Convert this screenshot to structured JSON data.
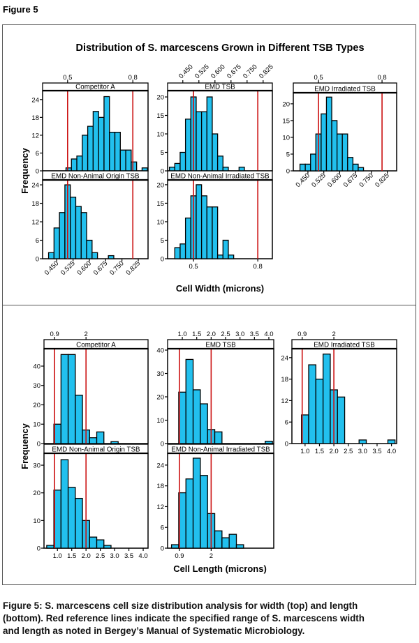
{
  "figure_label": "Figure 5",
  "caption_lines": [
    "Figure 5: S. marcescens cell size distribution analysis for width (top) and length",
    "(bottom). Red reference lines indicate the specified range of S. marcescens width",
    "and length as noted in Bergey’s Manual of Systematic Microbiology."
  ],
  "colors": {
    "bar": "#22c0ee",
    "reference_line": "#cc1111",
    "axis": "#000000"
  },
  "chart_data": [
    {
      "type": "bar",
      "title": "Distribution of S. marcescens Grown in Different TSB Types",
      "xlabel": "Cell Width (microns)",
      "ylabel": "Frequency",
      "reference_lines": [
        0.5,
        0.8
      ],
      "bin_width": 0.025,
      "panels": [
        {
          "title": "Competitor A",
          "xlim": [
            0.385,
            0.87
          ],
          "ylim": [
            0,
            27
          ],
          "yticks": [
            0,
            6,
            12,
            18,
            24
          ],
          "bin_start": 0.4925,
          "counts": [
            1,
            4,
            5,
            12,
            15,
            20,
            18,
            25,
            13,
            13,
            7,
            7,
            3,
            0,
            1
          ],
          "top_ticks": [
            "0.5",
            "0.8"
          ],
          "top_rotated": false,
          "bottom_ticks": [],
          "bottom_rotated": false
        },
        {
          "title": "EMD TSB",
          "xlim": [
            0.379,
            0.868
          ],
          "ylim": [
            0,
            21.7
          ],
          "yticks": [
            0,
            5,
            10,
            15,
            20
          ],
          "bin_start": 0.3875,
          "counts": [
            1,
            2,
            5,
            14,
            20,
            16,
            16,
            20,
            10,
            4,
            1,
            0,
            0,
            1
          ],
          "top_ticks": [
            "0.450",
            "0.525",
            "0.600",
            "0.675",
            "0.750",
            "0.825"
          ],
          "top_rotated": true,
          "bottom_ticks": [],
          "bottom_rotated": false
        },
        {
          "title": "EMD Irradiated TSB",
          "xlim": [
            0.381,
            0.869
          ],
          "ylim": [
            0,
            23.3
          ],
          "yticks": [
            0,
            5,
            10,
            15,
            20
          ],
          "bin_start": 0.4125,
          "counts": [
            2,
            2,
            5,
            11,
            17,
            22,
            15,
            11,
            11,
            4,
            2,
            1
          ],
          "top_ticks": [
            "0.5",
            "0.8"
          ],
          "top_rotated": false,
          "bottom_ticks": [
            "0.450",
            "0.525",
            "0.600",
            "0.675",
            "0.750",
            "0.825"
          ],
          "bottom_rotated": true
        },
        {
          "title": "EMD Non-Animal Origin TSB",
          "xlim": [
            0.385,
            0.87
          ],
          "ylim": [
            0,
            25.6
          ],
          "yticks": [
            0,
            6,
            12,
            18,
            24
          ],
          "bin_start": 0.4125,
          "counts": [
            2,
            10,
            15,
            24,
            20,
            17,
            15,
            6,
            2,
            0,
            0,
            1
          ],
          "top_ticks": [],
          "top_rotated": false,
          "bottom_ticks": [
            "0.450",
            "0.525",
            "0.600",
            "0.675",
            "0.750",
            "0.825"
          ],
          "bottom_rotated": true
        },
        {
          "title": "EMD Non-Animal Irradiated TSB",
          "xlim": [
            0.379,
            0.868
          ],
          "ylim": [
            0,
            21.3
          ],
          "yticks": [
            0,
            5,
            10,
            15,
            20
          ],
          "bin_start": 0.4125,
          "counts": [
            3,
            4,
            11,
            17,
            20,
            17,
            14,
            14,
            1,
            5,
            1
          ],
          "top_ticks": [],
          "top_rotated": false,
          "bottom_ticks": [
            "0.5",
            "0.8"
          ],
          "bottom_rotated": false
        }
      ]
    },
    {
      "type": "bar",
      "title": "",
      "xlabel": "Cell Length (microns)",
      "ylabel": "Frequency",
      "reference_lines": [
        0.9,
        2
      ],
      "bin_width": 0.25,
      "panels": [
        {
          "title": "Competitor A",
          "xlim": [
            0.53,
            4.17
          ],
          "ylim": [
            0,
            49
          ],
          "yticks": [
            0,
            10,
            20,
            30,
            40
          ],
          "bin_start": 0.875,
          "counts": [
            10,
            46,
            46,
            25,
            7,
            3,
            6,
            0,
            1
          ],
          "top_ticks": [
            "0.9",
            "2"
          ],
          "top_rotated": false,
          "bottom_ticks": [],
          "bottom_rotated": false
        },
        {
          "title": "EMD TSB",
          "xlim": [
            0.49,
            4.17
          ],
          "ylim": [
            0,
            40.6
          ],
          "yticks": [
            0,
            10,
            20,
            30,
            40
          ],
          "bin_start": 0.875,
          "counts": [
            22,
            36,
            23,
            17,
            6,
            5,
            0,
            0,
            0,
            0,
            0,
            0,
            1
          ],
          "top_ticks": [
            "1.0",
            "1.5",
            "2.0",
            "2.5",
            "3.0",
            "3.5",
            "4.0"
          ],
          "top_rotated": false,
          "bottom_ticks": [],
          "bottom_rotated": false
        },
        {
          "title": "EMD Irradiated TSB",
          "xlim": [
            0.543,
            4.18
          ],
          "ylim": [
            0,
            26.5
          ],
          "yticks": [
            0,
            6,
            12,
            18,
            24
          ],
          "bin_start": 0.875,
          "counts": [
            8,
            22,
            18,
            25,
            15,
            13,
            0,
            0,
            1,
            0,
            0,
            0,
            1
          ],
          "top_ticks": [
            "0.9",
            "2"
          ],
          "top_rotated": false,
          "bottom_ticks": [
            "1.0",
            "1.5",
            "2.0",
            "2.5",
            "3.0",
            "3.5",
            "4.0"
          ],
          "bottom_rotated": false
        },
        {
          "title": "EMD Non-Animal Origin TSB",
          "xlim": [
            0.53,
            4.17
          ],
          "ylim": [
            0,
            34.3
          ],
          "yticks": [
            0,
            10,
            20,
            30
          ],
          "bin_start": 0.625,
          "counts": [
            1,
            21,
            32,
            22,
            18,
            10,
            4,
            3,
            1
          ],
          "top_ticks": [],
          "top_rotated": false,
          "bottom_ticks": [
            "1.0",
            "1.5",
            "2.0",
            "2.5",
            "3.0",
            "3.5",
            "4.0"
          ],
          "bottom_rotated": false
        },
        {
          "title": "EMD Non-Animal Irradiated TSB",
          "xlim": [
            0.49,
            4.17
          ],
          "ylim": [
            0,
            27.4
          ],
          "yticks": [
            0,
            6,
            12,
            18,
            24
          ],
          "bin_start": 0.625,
          "counts": [
            1,
            16,
            20,
            26,
            21,
            10,
            5,
            3,
            4,
            1
          ],
          "top_ticks": [],
          "top_rotated": false,
          "bottom_ticks": [
            "0.9",
            "2"
          ],
          "bottom_rotated": false
        }
      ]
    }
  ]
}
